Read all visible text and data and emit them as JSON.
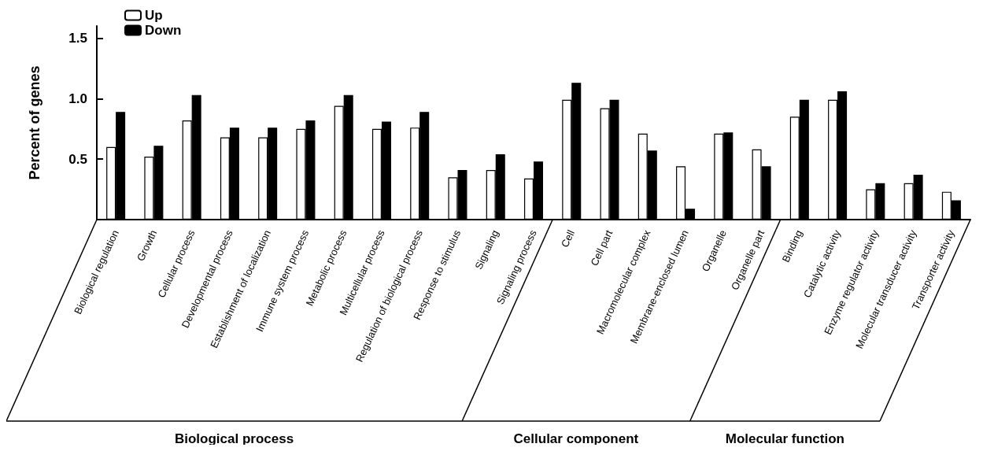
{
  "chart_data": {
    "type": "bar",
    "ylabel": "Percent of genes",
    "categories": [
      "Biological regulation",
      "Growth",
      "Cellular process",
      "Developmental process",
      "Establishment of localization",
      "Immune system process",
      "Metabolic process",
      "Multicellular process",
      "Regulation of biological process",
      "Response to stimulus",
      "Signaling",
      "Signaling process",
      "Cell",
      "Cell part",
      "Macromolecular complex",
      "Membrane-enclosed lumen",
      "Organelle",
      "Organelle part",
      "Binding",
      "Catalytic activity",
      "Enzyme regulator activity",
      "Molecular transducer activity",
      "Transporter activity"
    ],
    "series": [
      {
        "name": "Up",
        "color": "#ffffff",
        "values": [
          0.6,
          0.52,
          0.82,
          0.68,
          0.68,
          0.75,
          0.94,
          0.75,
          0.76,
          0.35,
          0.41,
          0.34,
          0.99,
          0.92,
          0.71,
          0.44,
          0.71,
          0.58,
          0.85,
          0.99,
          0.25,
          0.3,
          0.23
        ]
      },
      {
        "name": "Down",
        "color": "#000000",
        "values": [
          0.89,
          0.61,
          1.03,
          0.76,
          0.76,
          0.82,
          1.03,
          0.81,
          0.89,
          0.41,
          0.54,
          0.48,
          1.13,
          0.99,
          0.57,
          0.09,
          0.72,
          0.44,
          0.99,
          1.06,
          0.3,
          0.37,
          0.16
        ]
      }
    ],
    "ylim": [
      0,
      1.6
    ],
    "yticks": [
      {
        "value": 0.5,
        "label": "0.5"
      },
      {
        "value": 1,
        "label": "1.0"
      },
      {
        "value": 1.5,
        "label": "1.5"
      }
    ],
    "grid": false,
    "legend": "top left",
    "annotations": [
      "Biological process",
      "Cellular component",
      "Molecular function"
    ]
  }
}
